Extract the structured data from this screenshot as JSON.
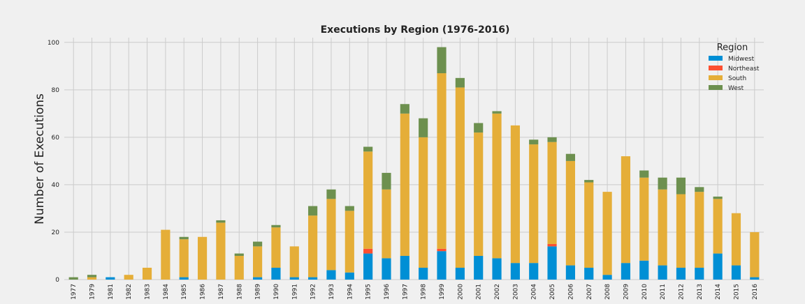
{
  "chart_data": {
    "type": "bar",
    "stacked": true,
    "title": "Executions by Region (1976-2016)",
    "xlabel": "",
    "ylabel": "Number of Executions",
    "ylim": [
      0,
      102
    ],
    "yticks": [
      0,
      20,
      40,
      60,
      80,
      100
    ],
    "grid": true,
    "legend": {
      "title": "Region",
      "placement": "top-right"
    },
    "categories": [
      "1977",
      "1979",
      "1981",
      "1982",
      "1983",
      "1984",
      "1985",
      "1986",
      "1987",
      "1988",
      "1989",
      "1990",
      "1991",
      "1992",
      "1993",
      "1994",
      "1995",
      "1996",
      "1997",
      "1998",
      "1999",
      "2000",
      "2001",
      "2002",
      "2003",
      "2004",
      "2005",
      "2006",
      "2007",
      "2008",
      "2009",
      "2010",
      "2011",
      "2012",
      "2013",
      "2014",
      "2015",
      "2016"
    ],
    "series": [
      {
        "name": "Midwest",
        "color": "#008fd5",
        "values": [
          0,
          0,
          1,
          0,
          0,
          0,
          1,
          0,
          0,
          0,
          1,
          5,
          1,
          1,
          4,
          3,
          11,
          9,
          10,
          5,
          12,
          5,
          10,
          9,
          7,
          7,
          14,
          6,
          5,
          2,
          7,
          8,
          6,
          5,
          5,
          11,
          6,
          1
        ]
      },
      {
        "name": "Northeast",
        "color": "#fc4f30",
        "values": [
          0,
          0,
          0,
          0,
          0,
          0,
          0,
          0,
          0,
          0,
          0,
          0,
          0,
          0,
          0,
          0,
          2,
          0,
          0,
          0,
          1,
          0,
          0,
          0,
          0,
          0,
          1,
          0,
          0,
          0,
          0,
          0,
          0,
          0,
          0,
          0,
          0,
          0
        ]
      },
      {
        "name": "South",
        "color": "#e5ae38",
        "values": [
          0,
          1,
          0,
          2,
          5,
          21,
          16,
          18,
          24,
          10,
          13,
          17,
          13,
          26,
          30,
          26,
          41,
          29,
          60,
          55,
          74,
          76,
          52,
          61,
          58,
          50,
          43,
          44,
          36,
          35,
          45,
          35,
          32,
          31,
          32,
          23,
          22,
          19
        ]
      },
      {
        "name": "West",
        "color": "#6d904f",
        "values": [
          1,
          1,
          0,
          0,
          0,
          0,
          1,
          0,
          1,
          1,
          2,
          1,
          0,
          4,
          4,
          2,
          2,
          7,
          4,
          8,
          11,
          4,
          4,
          1,
          0,
          2,
          2,
          3,
          1,
          0,
          0,
          3,
          5,
          7,
          2,
          1,
          0,
          0
        ]
      }
    ]
  }
}
